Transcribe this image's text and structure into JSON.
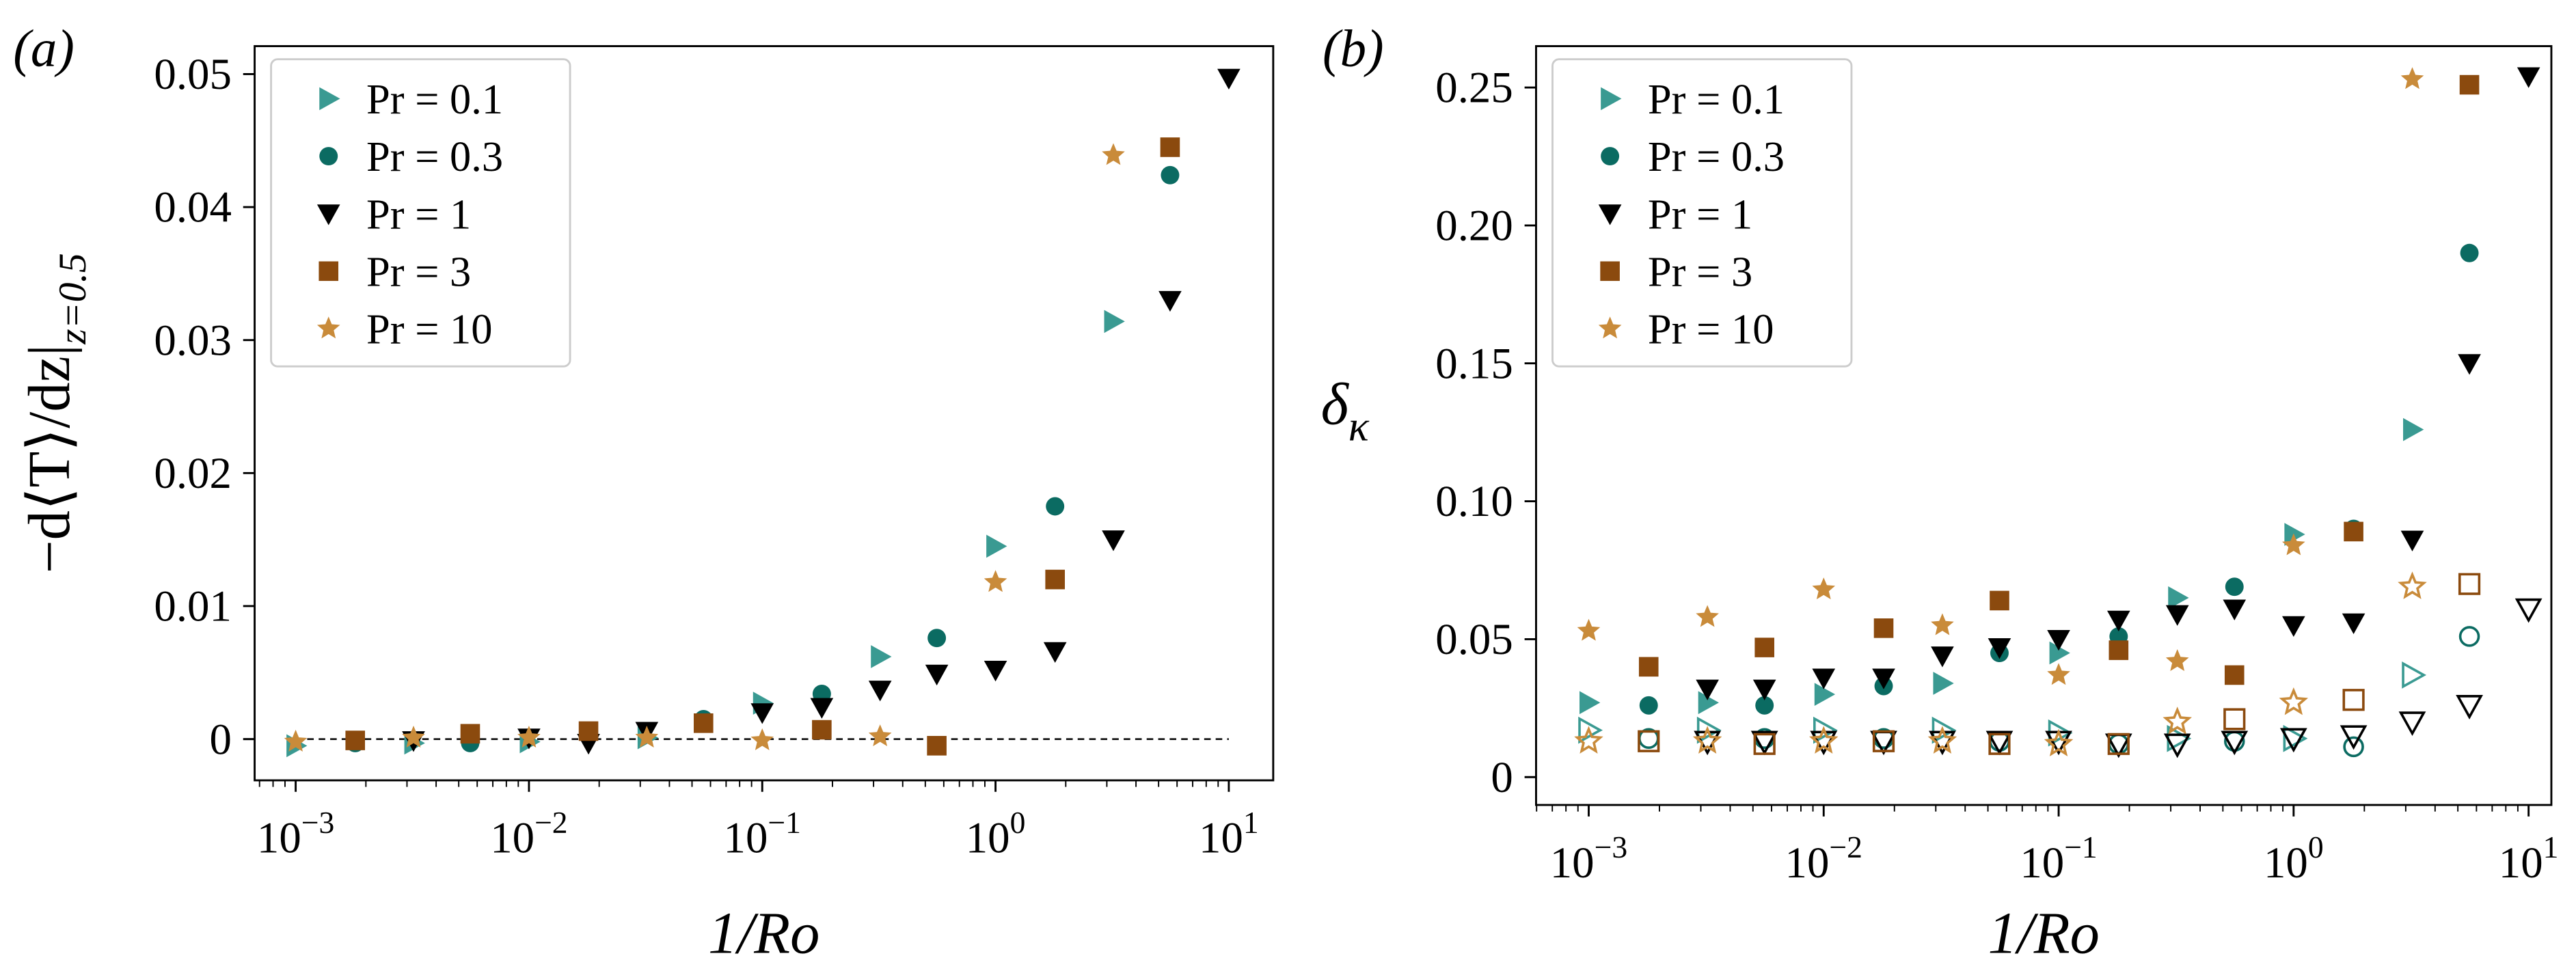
{
  "chart_data": [
    {
      "type": "scatter",
      "panel_label": "(a)",
      "xlabel": "1/Ro",
      "ylabel": "−d⟨T⟩/dz|",
      "ylabel_sub": "z=0.5",
      "log_x": true,
      "xlim": [
        0.000667,
        15.5
      ],
      "ylim": [
        -0.0031,
        0.0521
      ],
      "xticks": [
        {
          "value": 0.001,
          "label": "10",
          "exponent": "−3"
        },
        {
          "value": 0.01,
          "label": "10",
          "exponent": "−2"
        },
        {
          "value": 0.1,
          "label": "10",
          "exponent": "−1"
        },
        {
          "value": 1,
          "label": "10",
          "exponent": "0"
        },
        {
          "value": 10,
          "label": "10",
          "exponent": "1"
        }
      ],
      "yticks": [
        0,
        0.01,
        0.02,
        0.03,
        0.04,
        0.05
      ],
      "legend": "upper left",
      "hline": {
        "y": 0,
        "x": [
          0.001,
          10
        ]
      },
      "series": [
        {
          "name": "Pr = 0.1",
          "color": "#3a9a92",
          "marker": "triangle-right",
          "filled": true,
          "x": [
            0.001,
            0.0032,
            0.01,
            0.032,
            0.1,
            0.32,
            1,
            3.2
          ],
          "values": [
            -0.0005,
            -0.0003,
            -0.0002,
            0.0001,
            0.0027,
            0.0062,
            0.0145,
            0.0314
          ]
        },
        {
          "name": "Pr = 0.3",
          "color": "#0b6b62",
          "marker": "circle",
          "filled": true,
          "x": [
            0.0018,
            0.0056,
            0.018,
            0.056,
            0.18,
            0.56,
            1.8,
            5.6
          ],
          "values": [
            -0.0003,
            -0.0003,
            0.0003,
            0.0015,
            0.0034,
            0.0076,
            0.0175,
            0.0424
          ]
        },
        {
          "name": "Pr = 1",
          "color": "#000000",
          "marker": "triangle-down",
          "filled": true,
          "x": [
            0.0032,
            0.01,
            0.018,
            0.032,
            0.1,
            0.18,
            0.32,
            0.56,
            1,
            1.8,
            3.2,
            5.6,
            10
          ],
          "values": [
            -0.0001,
            0.0001,
            -0.0003,
            0.0006,
            0.002,
            0.0024,
            0.0037,
            0.0049,
            0.0052,
            0.0066,
            0.015,
            0.033,
            0.0497
          ]
        },
        {
          "name": "Pr = 3",
          "color": "#8b4a0e",
          "marker": "square",
          "filled": true,
          "x": [
            0.0018,
            0.0056,
            0.018,
            0.056,
            0.18,
            0.56,
            1.8,
            5.6
          ],
          "values": [
            -0.0001,
            0.0004,
            0.0006,
            0.0012,
            0.0007,
            -0.0005,
            0.012,
            0.0445
          ]
        },
        {
          "name": "Pr = 10",
          "color": "#c98b3a",
          "marker": "star",
          "filled": true,
          "x": [
            0.001,
            0.0032,
            0.01,
            0.032,
            0.1,
            0.32,
            1,
            3.2
          ],
          "values": [
            -0.0002,
            0.0001,
            0.0001,
            0.0001,
            -0.0001,
            0.0002,
            0.0118,
            0.0439
          ]
        }
      ]
    },
    {
      "type": "scatter",
      "panel_label": "(b)",
      "xlabel": "1/Ro",
      "ylabel": "δ",
      "ylabel_sub": "κ",
      "log_x": true,
      "xlim": [
        0.000597,
        12.5
      ],
      "ylim": [
        -0.0101,
        0.265
      ],
      "xticks": [
        {
          "value": 0.001,
          "label": "10",
          "exponent": "−3"
        },
        {
          "value": 0.01,
          "label": "10",
          "exponent": "−2"
        },
        {
          "value": 0.1,
          "label": "10",
          "exponent": "−1"
        },
        {
          "value": 1,
          "label": "10",
          "exponent": "0"
        },
        {
          "value": 10,
          "label": "10",
          "exponent": "1"
        }
      ],
      "yticks": [
        0,
        0.05,
        {
          "value": 0.1,
          "label": "0.10"
        },
        0.15,
        {
          "value": 0.2,
          "label": "0.20"
        },
        0.25
      ],
      "legend": "upper left",
      "series": [
        {
          "name": "Pr = 0.1",
          "color": "#3a9a92",
          "marker": "triangle-right",
          "filled": true,
          "x": [
            0.001,
            0.0032,
            0.01,
            0.032,
            0.1,
            0.32,
            1,
            3.2
          ],
          "values": [
            0.027,
            0.027,
            0.03,
            0.034,
            0.045,
            0.065,
            0.088,
            0.126
          ]
        },
        {
          "name": "Pr = 0.3",
          "color": "#0b6b62",
          "marker": "circle",
          "filled": true,
          "x": [
            0.0018,
            0.0056,
            0.018,
            0.056,
            0.18,
            0.56,
            1.8,
            5.6
          ],
          "values": [
            0.026,
            0.026,
            0.033,
            0.045,
            0.051,
            0.069,
            0.09,
            0.19
          ]
        },
        {
          "name": "Pr = 1",
          "color": "#000000",
          "marker": "triangle-down",
          "filled": true,
          "x": [
            0.0032,
            0.0056,
            0.01,
            0.018,
            0.032,
            0.056,
            0.1,
            0.18,
            0.32,
            0.56,
            1,
            1.8,
            3.2,
            5.6,
            10
          ],
          "values": [
            0.032,
            0.032,
            0.036,
            0.036,
            0.044,
            0.047,
            0.05,
            0.057,
            0.059,
            0.061,
            0.055,
            0.056,
            0.086,
            0.15,
            0.254
          ]
        },
        {
          "name": "Pr = 3",
          "color": "#8b4a0e",
          "marker": "square",
          "filled": true,
          "x": [
            0.0018,
            0.0056,
            0.018,
            0.056,
            0.18,
            0.56,
            1.8,
            5.6
          ],
          "values": [
            0.04,
            0.047,
            0.054,
            0.064,
            0.046,
            0.037,
            0.089,
            0.251
          ]
        },
        {
          "name": "Pr = 10",
          "color": "#c98b3a",
          "marker": "star",
          "filled": true,
          "x": [
            0.001,
            0.0032,
            0.01,
            0.032,
            0.1,
            0.32,
            1,
            3.2
          ],
          "values": [
            0.053,
            0.058,
            0.068,
            0.055,
            0.037,
            0.042,
            0.084,
            0.253
          ]
        },
        {
          "color": "#3a9a92",
          "marker": "triangle-right",
          "filled": false,
          "x": [
            0.001,
            0.0032,
            0.01,
            0.032,
            0.1,
            0.32,
            1,
            3.2
          ],
          "values": [
            0.017,
            0.017,
            0.017,
            0.017,
            0.016,
            0.014,
            0.014,
            0.037
          ]
        },
        {
          "color": "#0b6b62",
          "marker": "circle",
          "filled": false,
          "x": [
            0.0018,
            0.0056,
            0.018,
            0.056,
            0.18,
            0.56,
            1.8,
            5.6
          ],
          "values": [
            0.014,
            0.014,
            0.014,
            0.013,
            0.012,
            0.013,
            0.011,
            0.051
          ]
        },
        {
          "color": "#000000",
          "marker": "triangle-down",
          "filled": false,
          "x": [
            0.0032,
            0.0056,
            0.01,
            0.018,
            0.032,
            0.056,
            0.1,
            0.18,
            0.32,
            0.56,
            1,
            1.8,
            3.2,
            5.6,
            10
          ],
          "values": [
            0.013,
            0.013,
            0.013,
            0.013,
            0.013,
            0.013,
            0.013,
            0.012,
            0.012,
            0.013,
            0.014,
            0.015,
            0.02,
            0.026,
            0.061
          ]
        },
        {
          "color": "#8b4a0e",
          "marker": "square",
          "filled": false,
          "x": [
            0.0018,
            0.0056,
            0.018,
            0.056,
            0.18,
            0.56,
            1.8,
            5.6
          ],
          "values": [
            0.013,
            0.012,
            0.013,
            0.012,
            0.012,
            0.021,
            0.028,
            0.07
          ]
        },
        {
          "color": "#c98b3a",
          "marker": "star",
          "filled": false,
          "x": [
            0.001,
            0.0032,
            0.01,
            0.032,
            0.1,
            0.32,
            1,
            3.2
          ],
          "values": [
            0.013,
            0.013,
            0.013,
            0.013,
            0.012,
            0.02,
            0.027,
            0.069
          ]
        }
      ]
    }
  ]
}
